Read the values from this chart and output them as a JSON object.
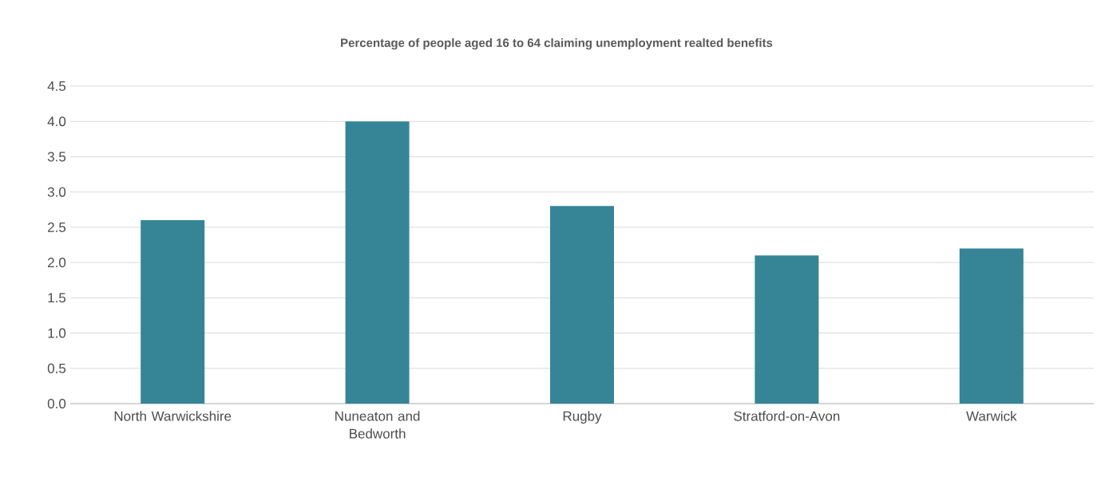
{
  "chart_data": {
    "type": "bar",
    "title": "Percentage of people aged 16 to 64 claiming unemployment realted benefits",
    "categories": [
      "North Warwickshire",
      "Nuneaton and Bedworth",
      "Rugby",
      "Stratford-on-Avon",
      "Warwick"
    ],
    "values": [
      2.6,
      4.0,
      2.8,
      2.1,
      2.2
    ],
    "color": "#358597",
    "ylim": [
      0,
      4.5
    ],
    "yticks": [
      {
        "value": 0,
        "label": "0.0"
      },
      {
        "value": 0.5,
        "label": "0.5"
      },
      {
        "value": 1,
        "label": "1.0"
      },
      {
        "value": 1.5,
        "label": "1.5"
      },
      {
        "value": 2,
        "label": "2.0"
      },
      {
        "value": 2.5,
        "label": "2.5"
      },
      {
        "value": 3,
        "label": "3.0"
      },
      {
        "value": 3.5,
        "label": "3.5"
      },
      {
        "value": 4,
        "label": "4.0"
      },
      {
        "value": 4.5,
        "label": "4.5"
      }
    ],
    "grid": "y"
  }
}
